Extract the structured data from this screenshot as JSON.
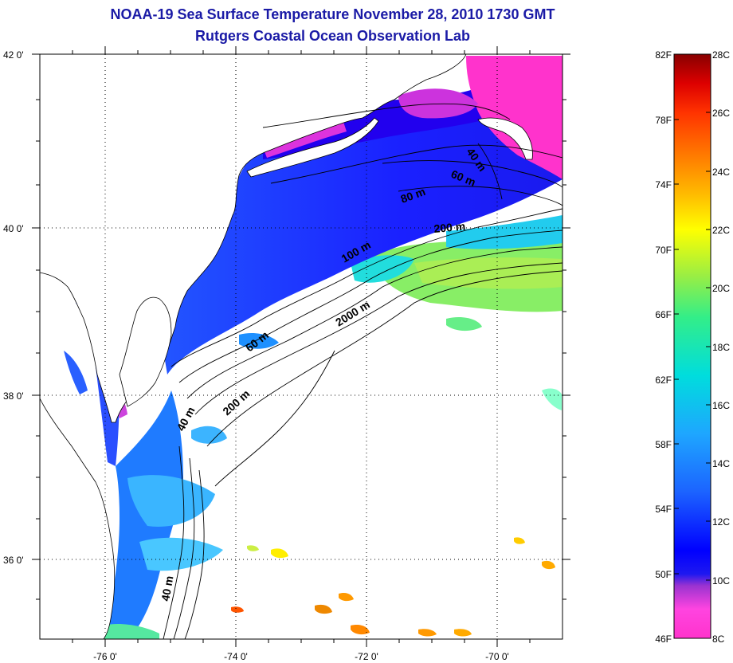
{
  "header": {
    "title": "NOAA-19 Sea Surface Temperature November 28, 2010 1730 GMT",
    "subtitle": "Rutgers Coastal Ocean Observation Lab"
  },
  "map": {
    "lat_range": [
      35,
      42
    ],
    "lon_range": [
      -77,
      -69
    ],
    "lat_ticks": [
      {
        "value": 42,
        "label": "42 0'"
      },
      {
        "value": 40,
        "label": "40 0'"
      },
      {
        "value": 38,
        "label": "38 0'"
      },
      {
        "value": 36,
        "label": "36 0'"
      }
    ],
    "lon_ticks": [
      {
        "value": -76,
        "label": "-76 0'"
      },
      {
        "value": -74,
        "label": "-74 0'"
      },
      {
        "value": -72,
        "label": "-72 0'"
      },
      {
        "value": -70,
        "label": "-70 0'"
      }
    ],
    "grid": true,
    "grid_style": "dotted",
    "land_color": "#ffffff",
    "missing_data_color": "#ffffff",
    "contour_color": "#000000"
  },
  "contour_labels": {
    "c40_ne": "40 m",
    "c60_ne": "60 m",
    "c80": "80 m",
    "c200_ne": "200 m",
    "c100": "100 m",
    "c2000": "2000 m",
    "c60_mid": "60 m",
    "c200_sw": "200 m",
    "c40_mid": "40 m",
    "c40_sw": "40 m"
  },
  "colorbar": {
    "range_c": [
      8,
      28
    ],
    "range_f": [
      46,
      82
    ],
    "f_labels": [
      "82F",
      "78F",
      "74F",
      "70F",
      "66F",
      "62F",
      "58F",
      "54F",
      "50F",
      "46F"
    ],
    "c_labels": [
      "28C",
      "26C",
      "24C",
      "22C",
      "20C",
      "18C",
      "16C",
      "14C",
      "12C",
      "10C",
      "8C"
    ],
    "colors": [
      "#ff33cc",
      "#ff44e0",
      "#9a33d0",
      "#1e18f0",
      "#0000ff",
      "#1c63ff",
      "#1ea6ff",
      "#00dddd",
      "#33ee88",
      "#99ee44",
      "#ffff00",
      "#ffbb00",
      "#ff7700",
      "#ff3300",
      "#dd0000",
      "#880000"
    ]
  }
}
